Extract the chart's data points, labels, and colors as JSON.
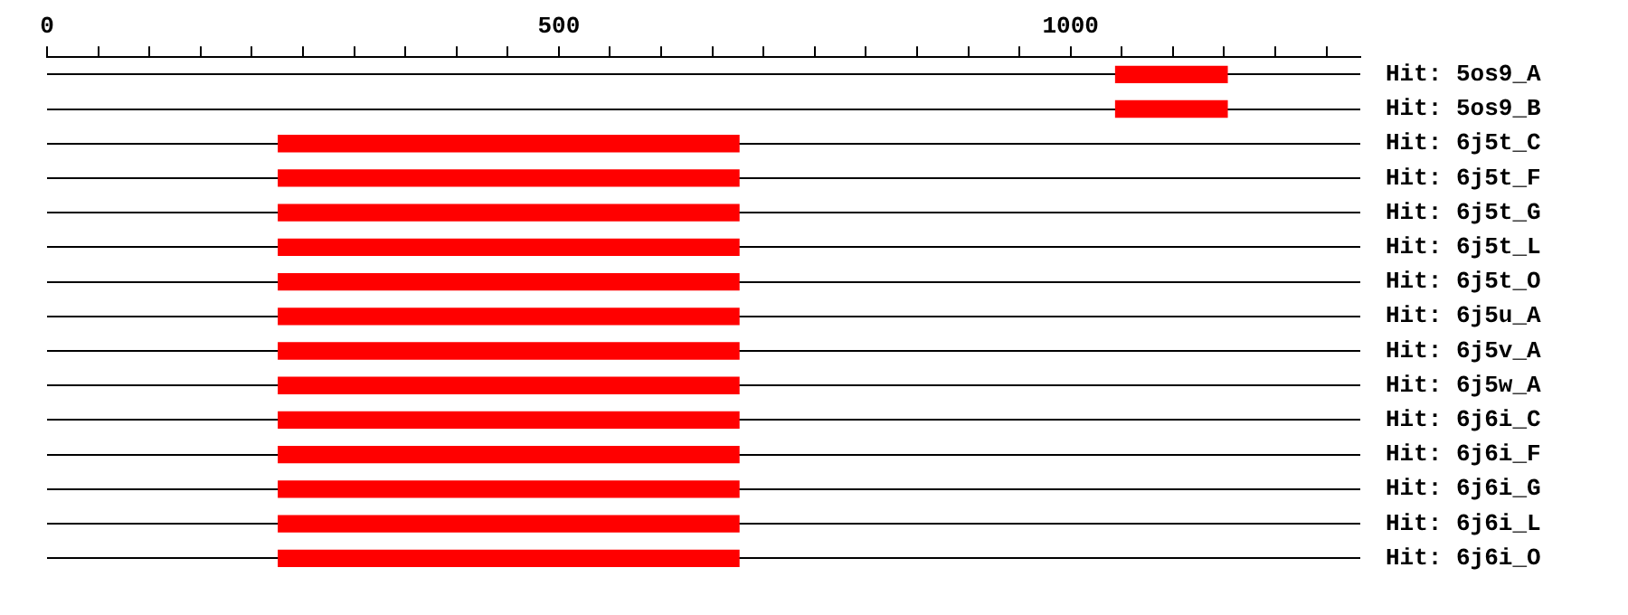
{
  "chart_data": {
    "type": "bar",
    "orientation": "horizontal",
    "categories": [
      "Hit: 5os9_A",
      "Hit: 5os9_B",
      "Hit: 6j5t_C",
      "Hit: 6j5t_F",
      "Hit: 6j5t_G",
      "Hit: 6j5t_L",
      "Hit: 6j5t_O",
      "Hit: 6j5u_A",
      "Hit: 6j5v_A",
      "Hit: 6j5w_A",
      "Hit: 6j6i_C",
      "Hit: 6j6i_F",
      "Hit: 6j6i_G",
      "Hit: 6j6i_L",
      "Hit: 6j6i_O"
    ],
    "base": [
      1044,
      1044,
      226,
      226,
      226,
      226,
      226,
      226,
      226,
      226,
      226,
      226,
      226,
      226,
      226
    ],
    "values": [
      109,
      109,
      450,
      450,
      450,
      450,
      450,
      450,
      450,
      450,
      450,
      450,
      450,
      450,
      450
    ],
    "color": "#ff0000",
    "xlim": [
      0,
      1283
    ],
    "xticks": [
      0,
      {
        "value": 50,
        "label": null
      },
      {
        "value": 100,
        "label": null
      },
      {
        "value": 150,
        "label": null
      },
      {
        "value": 200,
        "label": null
      },
      {
        "value": 250,
        "label": null
      },
      {
        "value": 300,
        "label": null
      },
      {
        "value": 350,
        "label": null
      },
      {
        "value": 400,
        "label": null
      },
      {
        "value": 450,
        "label": null
      },
      500,
      {
        "value": 550,
        "label": null
      },
      {
        "value": 600,
        "label": null
      },
      {
        "value": 650,
        "label": null
      },
      {
        "value": 700,
        "label": null
      },
      {
        "value": 750,
        "label": null
      },
      {
        "value": 800,
        "label": null
      },
      {
        "value": 850,
        "label": null
      },
      {
        "value": 900,
        "label": null
      },
      {
        "value": 950,
        "label": null
      },
      1000,
      {
        "value": 1050,
        "label": null
      },
      {
        "value": 1100,
        "label": null
      },
      {
        "value": 1150,
        "label": null
      },
      {
        "value": 1200,
        "label": null
      },
      {
        "value": 1250,
        "label": null
      }
    ],
    "grid": "y"
  }
}
